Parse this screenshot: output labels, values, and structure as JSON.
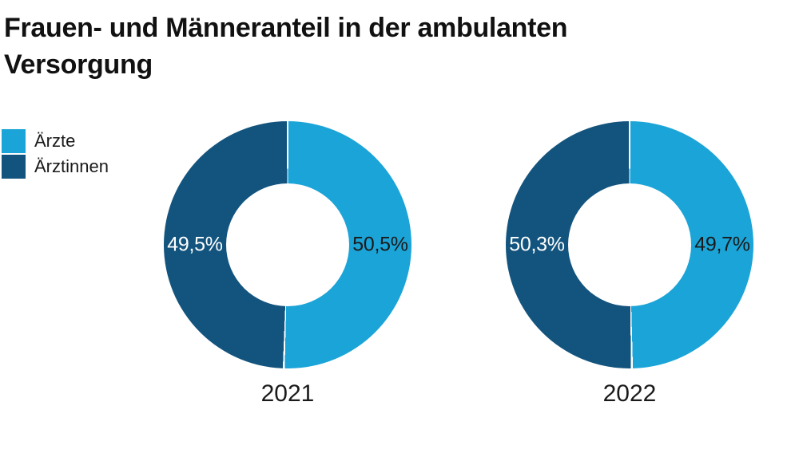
{
  "title": "Frauen- und Männeranteil in der ambulanten Versorgung",
  "colors": {
    "aerzte": "#1BA4D8",
    "aerztinnen": "#13547E",
    "text": "#1a1a1a",
    "background": "#ffffff"
  },
  "legend": {
    "items": [
      {
        "label": "Ärzte",
        "color": "#1BA4D8"
      },
      {
        "label": "Ärztinnen",
        "color": "#13547E"
      }
    ]
  },
  "chart_data": {
    "type": "pie",
    "subtype": "donut",
    "title": "Frauen- und Männeranteil in der ambulanten Versorgung",
    "legend_position": "top-left",
    "legend_entries": [
      "Ärzte",
      "Ärztinnen"
    ],
    "unit": "%",
    "decimal_separator": ",",
    "start_angle": "top",
    "direction": "clockwise",
    "charts": [
      {
        "category": "2021",
        "slices": [
          {
            "name": "Ärzte",
            "value": 50.5,
            "label": "50,5%",
            "color": "#1BA4D8",
            "label_color": "#1a1a1a"
          },
          {
            "name": "Ärztinnen",
            "value": 49.5,
            "label": "49,5%",
            "color": "#13547E",
            "label_color": "#ffffff"
          }
        ]
      },
      {
        "category": "2022",
        "slices": [
          {
            "name": "Ärzte",
            "value": 49.7,
            "label": "49,7%",
            "color": "#1BA4D8",
            "label_color": "#1a1a1a"
          },
          {
            "name": "Ärztinnen",
            "value": 50.3,
            "label": "50,3%",
            "color": "#13547E",
            "label_color": "#ffffff"
          }
        ]
      }
    ]
  }
}
